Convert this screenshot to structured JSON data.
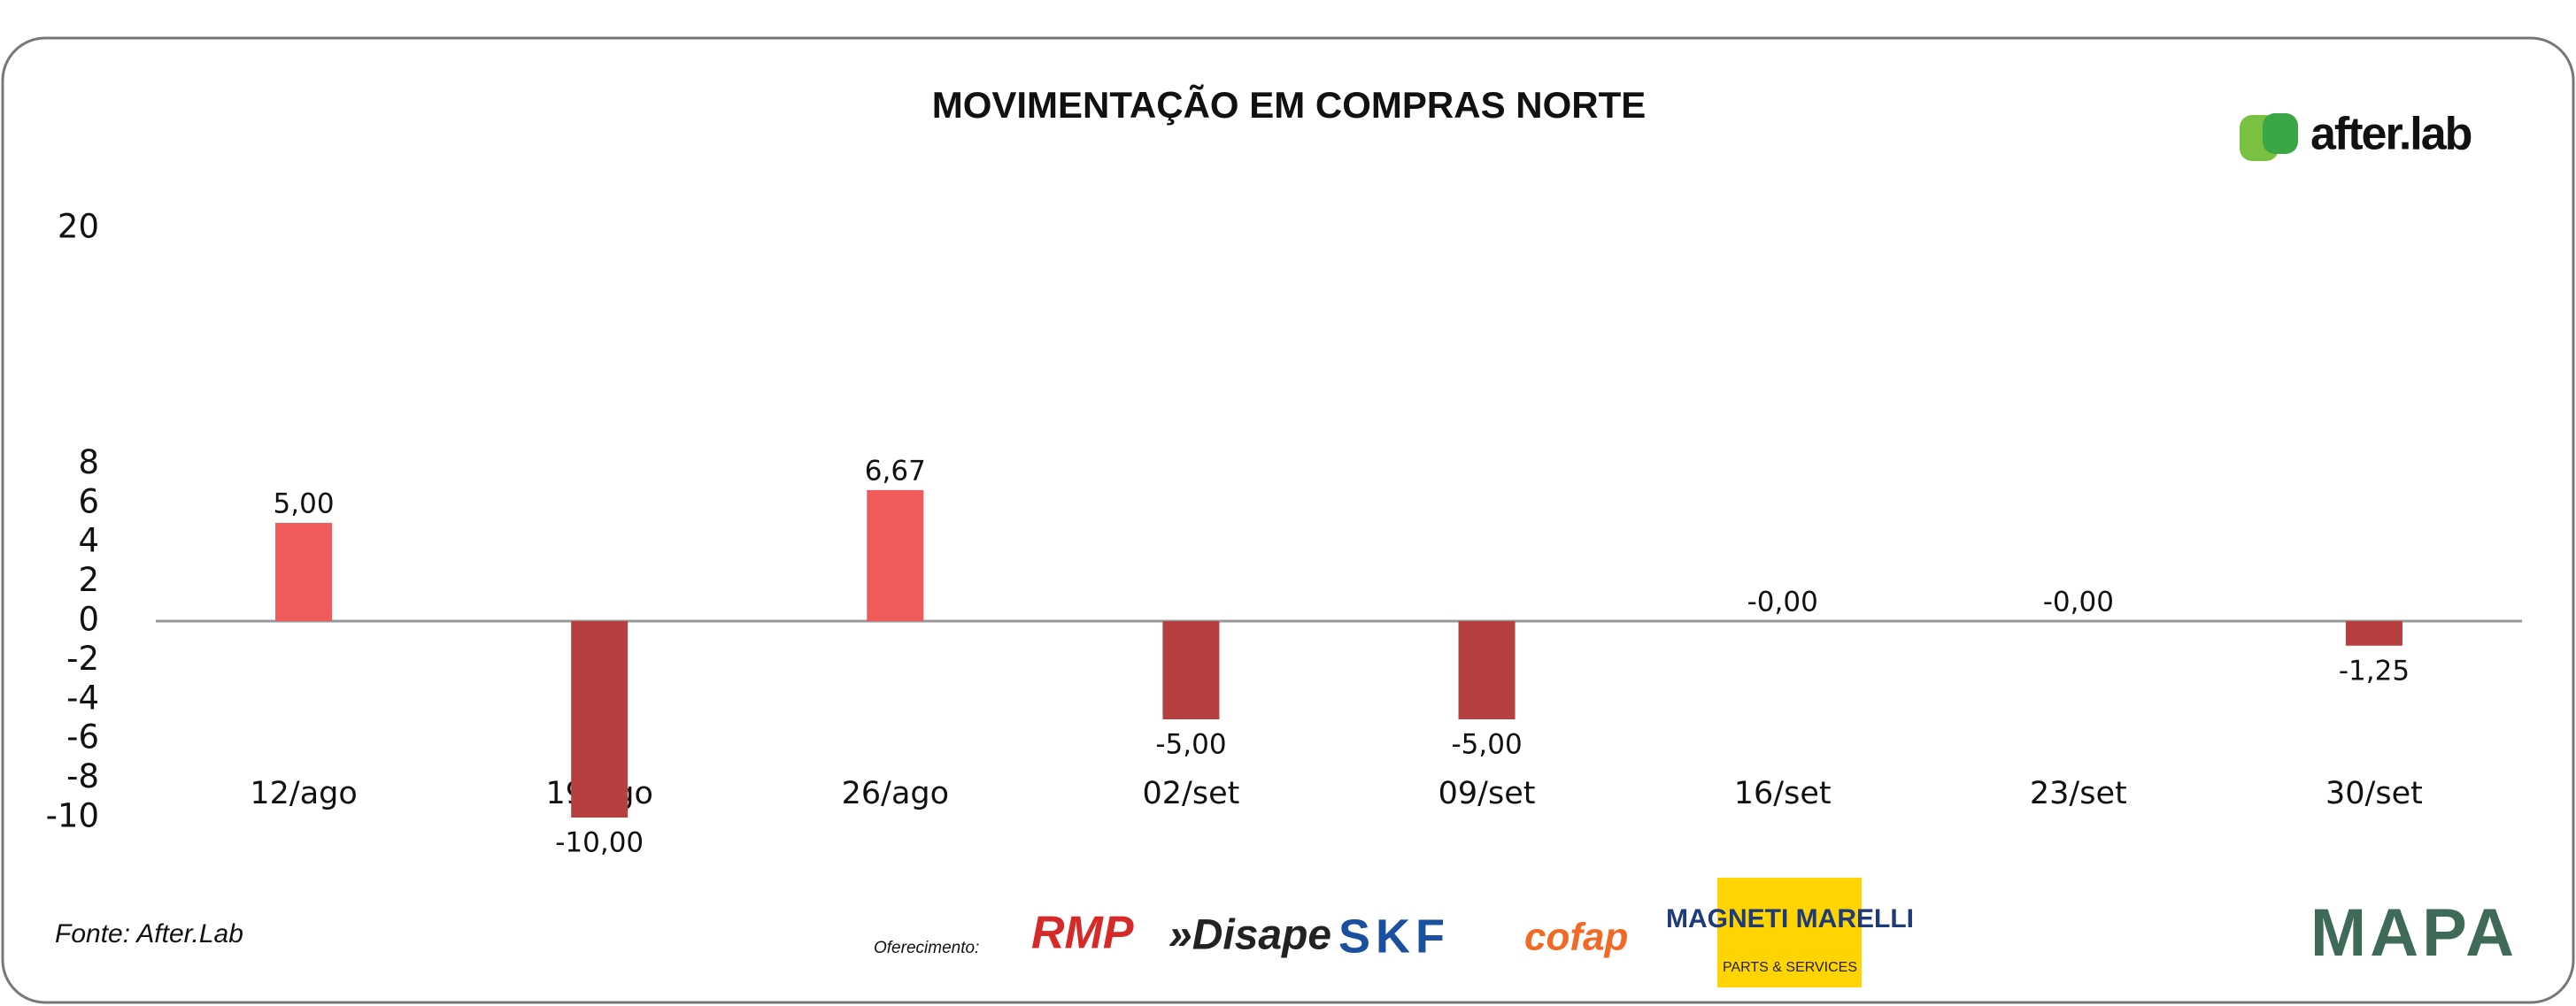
{
  "chart_data": {
    "type": "bar",
    "title": "MOVIMENTAÇÃO EM COMPRAS NORTE",
    "categories": [
      "12/ago",
      "19/ago",
      "26/ago",
      "02/set",
      "09/set",
      "16/set",
      "23/set",
      "30/set"
    ],
    "values": [
      5.0,
      -10.0,
      6.67,
      -5.0,
      -5.0,
      0,
      0,
      -1.25
    ],
    "value_labels": [
      "5,00",
      "-10,00",
      "6,67",
      "-5,00",
      "-5,00",
      "-0,00",
      "-0,00",
      "-1,25"
    ],
    "positive_color": "#f05a5a",
    "negative_color": "#b5403f",
    "ylim": [
      -10,
      20
    ],
    "yticks": [
      20,
      8,
      6,
      4,
      2,
      0,
      -2,
      -4,
      -6,
      -8,
      -10
    ],
    "grid": false
  },
  "header": {
    "brand": "after.lab"
  },
  "footer": {
    "source": "Fonte: After.Lab",
    "sponsor_caption": "Oferecimento:",
    "sponsors": [
      "RMP",
      "»Disape",
      "SKF",
      "cofap",
      "MAGNETI MARELLI"
    ],
    "sponsors_sub": "PARTS & SERVICES",
    "partner": "MAPA"
  }
}
